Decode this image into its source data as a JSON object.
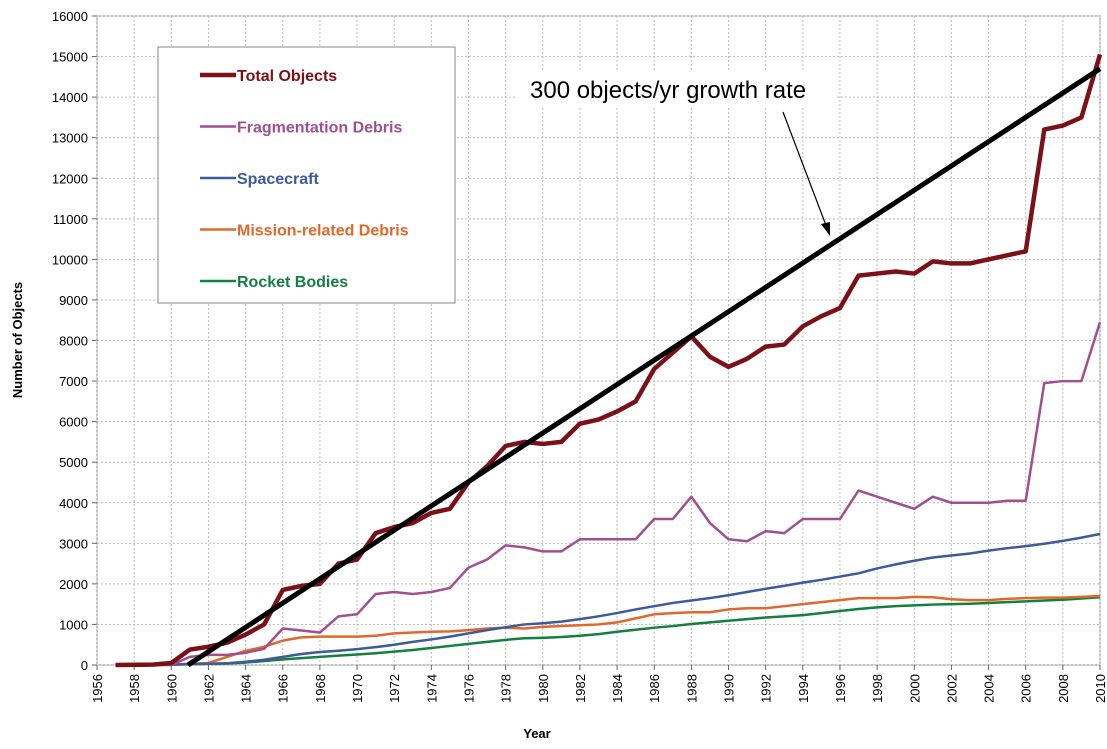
{
  "chart_data": {
    "type": "line",
    "xlabel": "Year",
    "ylabel": "Number of Objects",
    "annotation": "300 objects/yr growth rate",
    "x": [
      1957,
      1959,
      1960,
      1961,
      1962,
      1963,
      1964,
      1965,
      1966,
      1967,
      1968,
      1969,
      1970,
      1971,
      1972,
      1973,
      1974,
      1975,
      1976,
      1977,
      1978,
      1979,
      1980,
      1981,
      1982,
      1983,
      1984,
      1985,
      1986,
      1987,
      1988,
      1989,
      1990,
      1991,
      1992,
      1993,
      1994,
      1995,
      1996,
      1997,
      1998,
      1999,
      2000,
      2001,
      2002,
      2003,
      2004,
      2005,
      2006,
      2007,
      2008,
      2009,
      2010
    ],
    "series": [
      {
        "name": "Total Objects",
        "color": "#7b1016",
        "width": 4.5,
        "values": [
          0,
          10,
          50,
          380,
          450,
          550,
          750,
          1000,
          1850,
          1950,
          2000,
          2500,
          2600,
          3250,
          3400,
          3500,
          3750,
          3850,
          4500,
          4900,
          5400,
          5500,
          5450,
          5500,
          5950,
          6050,
          6250,
          6500,
          7300,
          7700,
          8100,
          7600,
          7350,
          7550,
          7850,
          7900,
          8350,
          8600,
          8800,
          9600,
          9650,
          9700,
          9650,
          9950,
          9900,
          9900,
          10000,
          10100,
          10200,
          13200,
          13300,
          13500,
          15050
        ]
      },
      {
        "name": "Fragmentation Debris",
        "color": "#a05090",
        "width": 2.5,
        "values": [
          0,
          0,
          0,
          200,
          250,
          250,
          300,
          400,
          900,
          850,
          800,
          1200,
          1250,
          1750,
          1800,
          1750,
          1800,
          1900,
          2400,
          2600,
          2950,
          2900,
          2800,
          2800,
          3100,
          3100,
          3100,
          3100,
          3600,
          3600,
          4150,
          3500,
          3100,
          3050,
          3300,
          3250,
          3600,
          3600,
          3600,
          4300,
          4150,
          4000,
          3850,
          4150,
          4000,
          4000,
          4000,
          4050,
          4050,
          6950,
          7000,
          7000,
          8450
        ]
      },
      {
        "name": "Spacecraft",
        "color": "#3d5a9b",
        "width": 2.5,
        "values": [
          0,
          5,
          10,
          20,
          30,
          40,
          80,
          130,
          200,
          270,
          320,
          350,
          390,
          440,
          500,
          570,
          630,
          700,
          780,
          860,
          930,
          1000,
          1030,
          1070,
          1130,
          1200,
          1280,
          1370,
          1450,
          1530,
          1590,
          1650,
          1720,
          1800,
          1880,
          1950,
          2030,
          2100,
          2180,
          2260,
          2380,
          2480,
          2570,
          2650,
          2700,
          2750,
          2820,
          2880,
          2930,
          2990,
          3060,
          3140,
          3230
        ]
      },
      {
        "name": "Mission-related Debris",
        "color": "#e0682a",
        "width": 2.5,
        "values": [
          0,
          0,
          10,
          30,
          50,
          200,
          350,
          450,
          600,
          680,
          700,
          700,
          700,
          720,
          780,
          800,
          820,
          830,
          860,
          900,
          920,
          900,
          940,
          960,
          980,
          1000,
          1050,
          1150,
          1250,
          1280,
          1300,
          1300,
          1370,
          1400,
          1400,
          1450,
          1500,
          1550,
          1600,
          1650,
          1650,
          1650,
          1680,
          1670,
          1620,
          1600,
          1600,
          1630,
          1650,
          1660,
          1660,
          1680,
          1700
        ]
      },
      {
        "name": "Rocket Bodies",
        "color": "#128040",
        "width": 2.5,
        "values": [
          0,
          5,
          10,
          20,
          30,
          40,
          60,
          100,
          140,
          170,
          200,
          230,
          260,
          290,
          330,
          370,
          420,
          470,
          520,
          570,
          620,
          660,
          670,
          690,
          720,
          760,
          820,
          870,
          920,
          960,
          1010,
          1050,
          1090,
          1130,
          1170,
          1200,
          1230,
          1280,
          1330,
          1380,
          1420,
          1450,
          1470,
          1490,
          1500,
          1510,
          1530,
          1550,
          1570,
          1590,
          1610,
          1640,
          1670
        ]
      }
    ],
    "trend": {
      "x": [
        1960.9,
        2010
      ],
      "values": [
        0,
        14700
      ],
      "color": "#000000"
    },
    "xlim": [
      1956,
      2010
    ],
    "ylim": [
      0,
      16000
    ],
    "xticks": [
      1956,
      1958,
      1960,
      1962,
      1964,
      1966,
      1968,
      1970,
      1972,
      1974,
      1976,
      1978,
      1980,
      1982,
      1984,
      1986,
      1988,
      1990,
      1992,
      1994,
      1996,
      1998,
      2000,
      2002,
      2004,
      2006,
      2008,
      2010
    ],
    "yticks": [
      0,
      1000,
      2000,
      3000,
      4000,
      5000,
      6000,
      7000,
      8000,
      9000,
      10000,
      11000,
      12000,
      13000,
      14000,
      15000,
      16000
    ],
    "grid": true
  }
}
